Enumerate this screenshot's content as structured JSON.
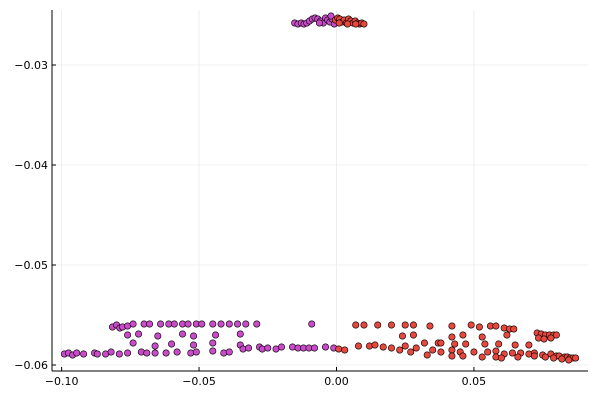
{
  "chart_data": {
    "type": "scatter",
    "title": "",
    "xlabel": "",
    "ylabel": "",
    "xlim": [
      -0.1035,
      0.0915
    ],
    "ylim": [
      -0.0606,
      -0.0245
    ],
    "x_ticks": [
      -0.1,
      -0.05,
      0.0,
      0.05
    ],
    "x_tick_labels": [
      "−0.10",
      "−0.05",
      "0.00",
      "0.05"
    ],
    "y_ticks": [
      -0.03,
      -0.04,
      -0.05,
      -0.06
    ],
    "y_tick_labels": [
      "−0.03",
      "−0.04",
      "−0.05",
      "−0.06"
    ],
    "grid": true,
    "legend": "none",
    "series": [
      {
        "color": "#c94bc9",
        "points": [
          [
            -0.0152,
            -0.0258
          ],
          [
            -0.014,
            -0.0259
          ],
          [
            -0.0128,
            -0.0258
          ],
          [
            -0.0118,
            -0.0259
          ],
          [
            -0.0108,
            -0.0258
          ],
          [
            -0.0098,
            -0.0256
          ],
          [
            -0.0088,
            -0.0254
          ],
          [
            -0.0078,
            -0.0253
          ],
          [
            -0.0068,
            -0.0254
          ],
          [
            -0.0058,
            -0.0256
          ],
          [
            -0.0048,
            -0.0258
          ],
          [
            -0.004,
            -0.0253
          ],
          [
            -0.0032,
            -0.0255
          ],
          [
            -0.0024,
            -0.0257
          ],
          [
            -0.0016,
            -0.0254
          ],
          [
            -0.0008,
            -0.0259
          ],
          [
            -0.0062,
            -0.0258
          ],
          [
            -0.002,
            -0.0251
          ],
          [
            -0.0815,
            -0.0562
          ],
          [
            -0.08,
            -0.056
          ],
          [
            -0.0788,
            -0.0563
          ],
          [
            -0.0778,
            -0.0562
          ],
          [
            -0.076,
            -0.0561
          ],
          [
            -0.074,
            -0.0559
          ],
          [
            -0.07,
            -0.0559
          ],
          [
            -0.068,
            -0.0559
          ],
          [
            -0.064,
            -0.0559
          ],
          [
            -0.061,
            -0.0559
          ],
          [
            -0.059,
            -0.0559
          ],
          [
            -0.056,
            -0.0559
          ],
          [
            -0.054,
            -0.0559
          ],
          [
            -0.051,
            -0.0559
          ],
          [
            -0.049,
            -0.0559
          ],
          [
            -0.045,
            -0.0559
          ],
          [
            -0.042,
            -0.0559
          ],
          [
            -0.039,
            -0.0559
          ],
          [
            -0.036,
            -0.0559
          ],
          [
            -0.033,
            -0.0559
          ],
          [
            -0.029,
            -0.0559
          ],
          [
            -0.009,
            -0.0559
          ],
          [
            -0.076,
            -0.057
          ],
          [
            -0.072,
            -0.0569
          ],
          [
            -0.065,
            -0.0571
          ],
          [
            -0.056,
            -0.0569
          ],
          [
            -0.052,
            -0.0571
          ],
          [
            -0.044,
            -0.057
          ],
          [
            -0.035,
            -0.0569
          ],
          [
            -0.074,
            -0.0578
          ],
          [
            -0.066,
            -0.0581
          ],
          [
            -0.06,
            -0.0579
          ],
          [
            -0.052,
            -0.058
          ],
          [
            -0.045,
            -0.0578
          ],
          [
            -0.035,
            -0.058
          ],
          [
            -0.034,
            -0.0584
          ],
          [
            -0.032,
            -0.0583
          ],
          [
            -0.028,
            -0.0582
          ],
          [
            -0.027,
            -0.0584
          ],
          [
            -0.025,
            -0.0583
          ],
          [
            -0.022,
            -0.0584
          ],
          [
            -0.02,
            -0.0582
          ],
          [
            -0.016,
            -0.0582
          ],
          [
            -0.014,
            -0.0583
          ],
          [
            -0.012,
            -0.0583
          ],
          [
            -0.01,
            -0.0583
          ],
          [
            -0.008,
            -0.0583
          ],
          [
            -0.004,
            -0.0582
          ],
          [
            -0.001,
            -0.0583
          ],
          [
            -0.099,
            -0.0589
          ],
          [
            -0.0975,
            -0.0588
          ],
          [
            -0.096,
            -0.059
          ],
          [
            -0.0945,
            -0.0588
          ],
          [
            -0.092,
            -0.0589
          ],
          [
            -0.088,
            -0.0588
          ],
          [
            -0.087,
            -0.0589
          ],
          [
            -0.084,
            -0.0589
          ],
          [
            -0.082,
            -0.0587
          ],
          [
            -0.079,
            -0.0589
          ],
          [
            -0.076,
            -0.0588
          ],
          [
            -0.071,
            -0.0587
          ],
          [
            -0.069,
            -0.0588
          ],
          [
            -0.066,
            -0.0588
          ],
          [
            -0.062,
            -0.0588
          ],
          [
            -0.058,
            -0.0587
          ],
          [
            -0.053,
            -0.0588
          ],
          [
            -0.051,
            -0.0587
          ],
          [
            -0.045,
            -0.0586
          ],
          [
            -0.041,
            -0.0588
          ],
          [
            -0.039,
            -0.0587
          ]
        ]
      },
      {
        "color": "#e8473d",
        "points": [
          [
            -0.0004,
            -0.0255
          ],
          [
            0.0005,
            -0.0253
          ],
          [
            0.0012,
            -0.0254
          ],
          [
            0.002,
            -0.0257
          ],
          [
            0.0028,
            -0.0255
          ],
          [
            0.0036,
            -0.0258
          ],
          [
            0.0044,
            -0.0254
          ],
          [
            0.0052,
            -0.0256
          ],
          [
            0.006,
            -0.0258
          ],
          [
            0.0068,
            -0.0256
          ],
          [
            0.0076,
            -0.0258
          ],
          [
            0.0084,
            -0.0259
          ],
          [
            0.0092,
            -0.0258
          ],
          [
            0.01,
            -0.0259
          ],
          [
            0.001,
            -0.0258
          ],
          [
            0.004,
            -0.0259
          ],
          [
            0.007,
            -0.0259
          ],
          [
            0.0008,
            -0.0584
          ],
          [
            0.003,
            -0.0585
          ],
          [
            0.007,
            -0.056
          ],
          [
            0.01,
            -0.056
          ],
          [
            0.015,
            -0.056
          ],
          [
            0.02,
            -0.056
          ],
          [
            0.025,
            -0.056
          ],
          [
            0.028,
            -0.056
          ],
          [
            0.034,
            -0.0561
          ],
          [
            0.042,
            -0.0561
          ],
          [
            0.049,
            -0.056
          ],
          [
            0.052,
            -0.0562
          ],
          [
            0.056,
            -0.0561
          ],
          [
            0.058,
            -0.0561
          ],
          [
            0.061,
            -0.0563
          ],
          [
            0.063,
            -0.0564
          ],
          [
            0.0645,
            -0.0564
          ],
          [
            0.024,
            -0.0571
          ],
          [
            0.028,
            -0.057
          ],
          [
            0.042,
            -0.0572
          ],
          [
            0.046,
            -0.057
          ],
          [
            0.053,
            -0.0572
          ],
          [
            0.062,
            -0.057
          ],
          [
            0.073,
            -0.0568
          ],
          [
            0.0745,
            -0.0569
          ],
          [
            0.076,
            -0.057
          ],
          [
            0.0775,
            -0.057
          ],
          [
            0.079,
            -0.057
          ],
          [
            0.08,
            -0.057
          ],
          [
            0.0735,
            -0.0573
          ],
          [
            0.0755,
            -0.0574
          ],
          [
            0.078,
            -0.0573
          ],
          [
            0.032,
            -0.0578
          ],
          [
            0.037,
            -0.0578
          ],
          [
            0.038,
            -0.0578
          ],
          [
            0.043,
            -0.0579
          ],
          [
            0.047,
            -0.0579
          ],
          [
            0.054,
            -0.0579
          ],
          [
            0.059,
            -0.0579
          ],
          [
            0.065,
            -0.058
          ],
          [
            0.07,
            -0.058
          ],
          [
            0.008,
            -0.0581
          ],
          [
            0.012,
            -0.0581
          ],
          [
            0.014,
            -0.058
          ],
          [
            0.017,
            -0.0582
          ],
          [
            0.02,
            -0.0583
          ],
          [
            0.023,
            -0.0585
          ],
          [
            0.025,
            -0.0581
          ],
          [
            0.027,
            -0.0587
          ],
          [
            0.029,
            -0.0583
          ],
          [
            0.035,
            -0.0585
          ],
          [
            0.038,
            -0.0587
          ],
          [
            0.042,
            -0.0585
          ],
          [
            0.045,
            -0.0587
          ],
          [
            0.05,
            -0.0587
          ],
          [
            0.055,
            -0.0587
          ],
          [
            0.058,
            -0.0586
          ],
          [
            0.061,
            -0.0589
          ],
          [
            0.064,
            -0.0588
          ],
          [
            0.067,
            -0.0588
          ],
          [
            0.07,
            -0.0589
          ],
          [
            0.072,
            -0.0588
          ],
          [
            0.075,
            -0.059
          ],
          [
            0.078,
            -0.0589
          ],
          [
            0.08,
            -0.0591
          ],
          [
            0.081,
            -0.0591
          ],
          [
            0.083,
            -0.0592
          ],
          [
            0.084,
            -0.0592
          ],
          [
            0.085,
            -0.0593
          ],
          [
            0.086,
            -0.0593
          ],
          [
            0.087,
            -0.0593
          ],
          [
            0.033,
            -0.059
          ],
          [
            0.042,
            -0.0591
          ],
          [
            0.046,
            -0.0591
          ],
          [
            0.053,
            -0.0592
          ],
          [
            0.058,
            -0.0592
          ],
          [
            0.06,
            -0.0593
          ],
          [
            0.066,
            -0.0592
          ],
          [
            0.072,
            -0.0591
          ],
          [
            0.076,
            -0.0592
          ],
          [
            0.079,
            -0.0593
          ],
          [
            0.082,
            -0.0594
          ],
          [
            0.0845,
            -0.0595
          ]
        ]
      }
    ]
  }
}
